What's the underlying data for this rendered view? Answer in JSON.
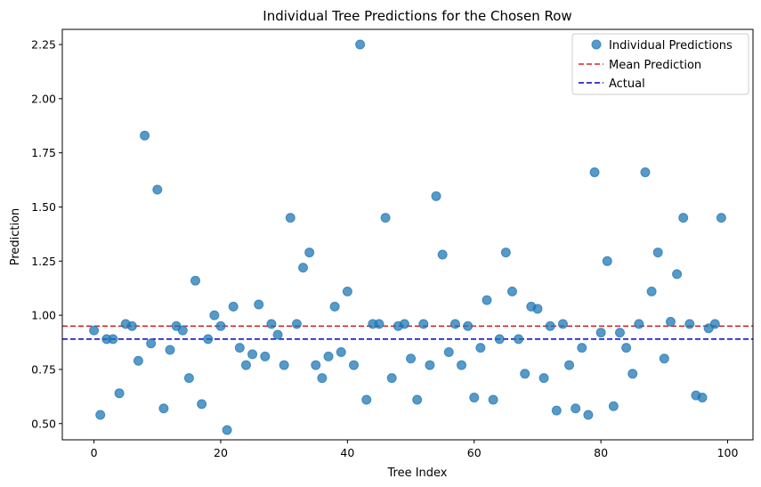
{
  "chart_data": {
    "type": "scatter",
    "title": "Individual Tree Predictions for the Chosen Row",
    "xlabel": "Tree Index",
    "ylabel": "Prediction",
    "xlim": [
      -5,
      104
    ],
    "ylim": [
      0.425,
      2.32
    ],
    "xticks": [
      0,
      20,
      40,
      60,
      80,
      100
    ],
    "yticks": [
      0.5,
      0.75,
      1.0,
      1.25,
      1.5,
      1.75,
      2.0,
      2.25
    ],
    "xtick_labels": [
      "0",
      "20",
      "40",
      "60",
      "80",
      "100"
    ],
    "ytick_labels": [
      "0.50",
      "0.75",
      "1.00",
      "1.25",
      "1.50",
      "1.75",
      "2.00",
      "2.25"
    ],
    "grid": false,
    "legend_position": "top-right",
    "series": [
      {
        "name": "Individual Predictions",
        "color": "#1f77b4",
        "x": [
          0,
          1,
          2,
          3,
          4,
          5,
          6,
          7,
          8,
          9,
          10,
          11,
          12,
          13,
          14,
          15,
          16,
          17,
          18,
          19,
          20,
          21,
          22,
          23,
          24,
          25,
          26,
          27,
          28,
          29,
          30,
          31,
          32,
          33,
          34,
          35,
          36,
          37,
          38,
          39,
          40,
          41,
          42,
          43,
          44,
          45,
          46,
          47,
          48,
          49,
          50,
          51,
          52,
          53,
          54,
          55,
          56,
          57,
          58,
          59,
          60,
          61,
          62,
          63,
          64,
          65,
          66,
          67,
          68,
          69,
          70,
          71,
          72,
          73,
          74,
          75,
          76,
          77,
          78,
          79,
          80,
          81,
          82,
          83,
          84,
          85,
          86,
          87,
          88,
          89,
          90,
          91,
          92,
          93,
          94,
          95,
          96,
          97,
          98,
          99
        ],
        "y": [
          0.93,
          0.54,
          0.89,
          0.89,
          0.64,
          0.96,
          0.95,
          0.79,
          1.83,
          0.87,
          1.58,
          0.57,
          0.84,
          0.95,
          0.93,
          0.71,
          1.16,
          0.59,
          0.89,
          1.0,
          0.95,
          0.47,
          1.04,
          0.85,
          0.77,
          0.82,
          1.05,
          0.81,
          0.96,
          0.91,
          0.77,
          1.45,
          0.96,
          1.22,
          1.29,
          0.77,
          0.71,
          0.81,
          1.04,
          0.83,
          1.11,
          0.77,
          2.25,
          0.61,
          0.96,
          0.96,
          1.45,
          0.71,
          0.95,
          0.96,
          0.8,
          0.61,
          0.96,
          0.77,
          1.55,
          1.28,
          0.83,
          0.96,
          0.77,
          0.95,
          0.62,
          0.85,
          1.07,
          0.61,
          0.89,
          1.29,
          1.11,
          0.89,
          0.73,
          1.04,
          1.03,
          0.71,
          0.95,
          0.56,
          0.96,
          0.77,
          0.57,
          0.85,
          0.54,
          1.66,
          0.92,
          1.25,
          0.58,
          0.92,
          0.85,
          0.73,
          0.96,
          1.66,
          1.11,
          1.29,
          0.8,
          0.97,
          1.19,
          1.45,
          0.96,
          0.63,
          0.62,
          0.94,
          0.96,
          1.45
        ]
      },
      {
        "name": "Mean Prediction",
        "type": "hline",
        "y": 0.95,
        "color": "#d62728"
      },
      {
        "name": "Actual",
        "type": "hline",
        "y": 0.89,
        "color": "#0000c8"
      }
    ]
  }
}
